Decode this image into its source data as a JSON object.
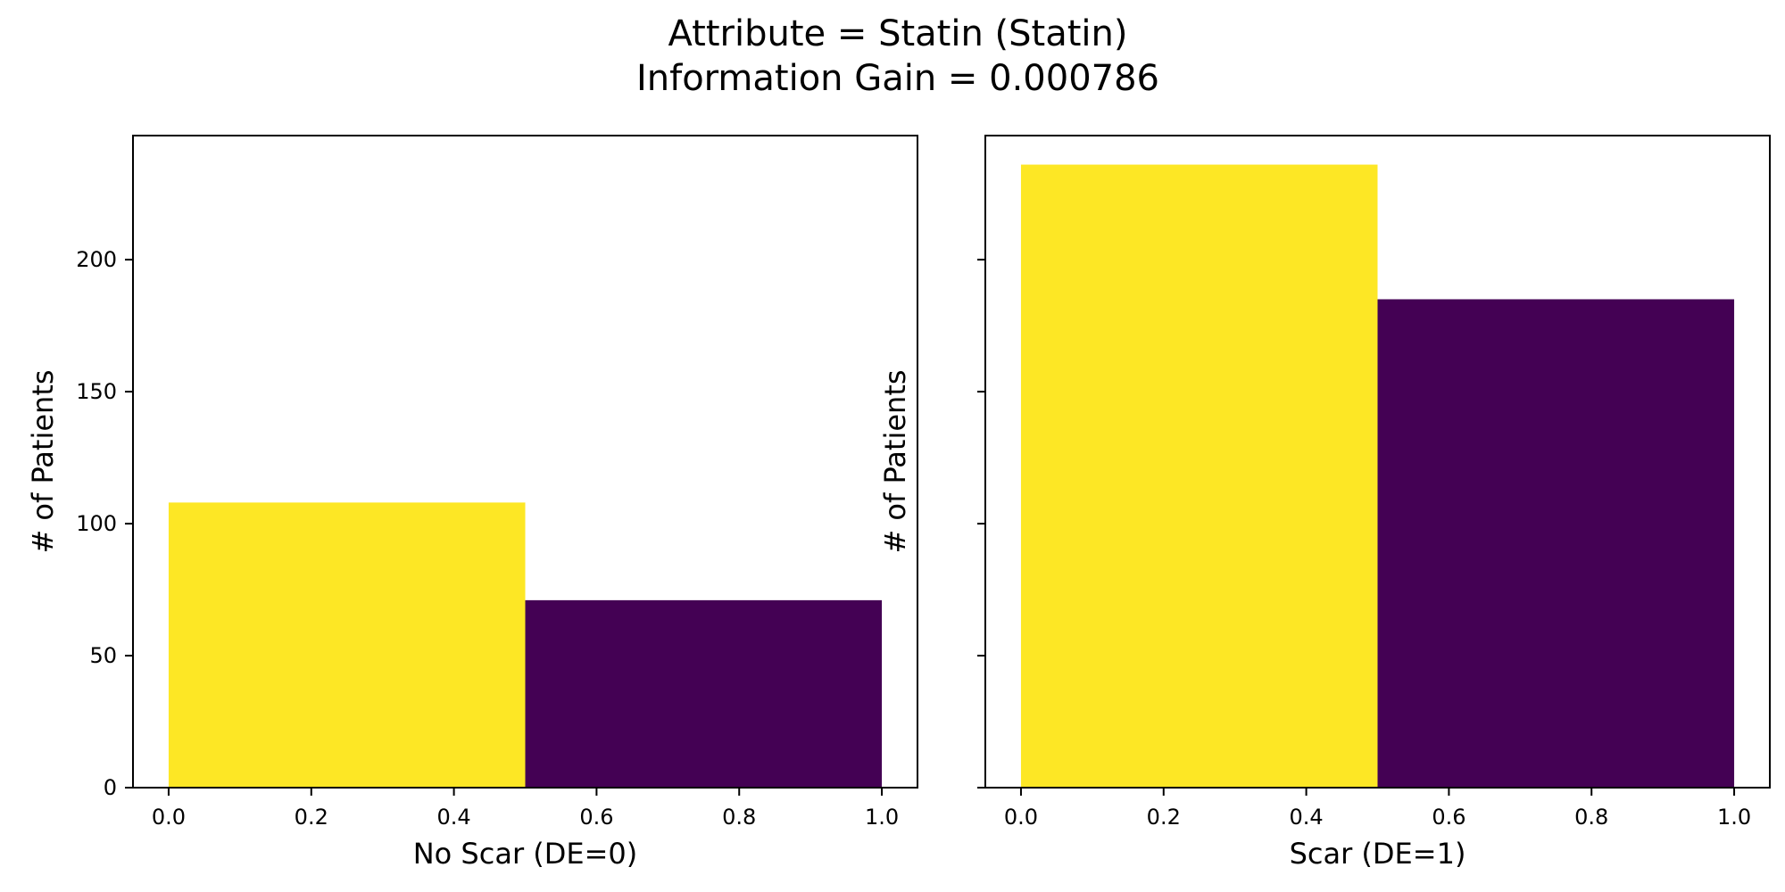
{
  "figure": {
    "title_line1": "Attribute = Statin (Statin)",
    "title_line2": "Information Gain = 0.000786"
  },
  "chart_data": [
    {
      "type": "bar",
      "panel": "left",
      "xlabel": "No Scar (DE=0)",
      "ylabel": "# of Patients",
      "xlim": [
        -0.05,
        1.05
      ],
      "ylim": [
        0,
        247
      ],
      "xticks": [
        "0.0",
        "0.2",
        "0.4",
        "0.6",
        "0.8",
        "1.0"
      ],
      "yticks": [
        "0",
        "50",
        "100",
        "150",
        "200"
      ],
      "grid": false,
      "bars": [
        {
          "x0": 0.0,
          "x1": 0.5,
          "value": 108,
          "color": "#fde725"
        },
        {
          "x0": 0.5,
          "x1": 1.0,
          "value": 71,
          "color": "#440154"
        }
      ]
    },
    {
      "type": "bar",
      "panel": "right",
      "xlabel": "Scar (DE=1)",
      "ylabel": "# of Patients",
      "xlim": [
        -0.05,
        1.05
      ],
      "ylim": [
        0,
        247
      ],
      "xticks": [
        "0.0",
        "0.2",
        "0.4",
        "0.6",
        "0.8",
        "1.0"
      ],
      "yticks": [],
      "shared_y": true,
      "grid": false,
      "bars": [
        {
          "x0": 0.0,
          "x1": 0.5,
          "value": 236,
          "color": "#fde725"
        },
        {
          "x0": 0.5,
          "x1": 1.0,
          "value": 185,
          "color": "#440154"
        }
      ]
    }
  ]
}
